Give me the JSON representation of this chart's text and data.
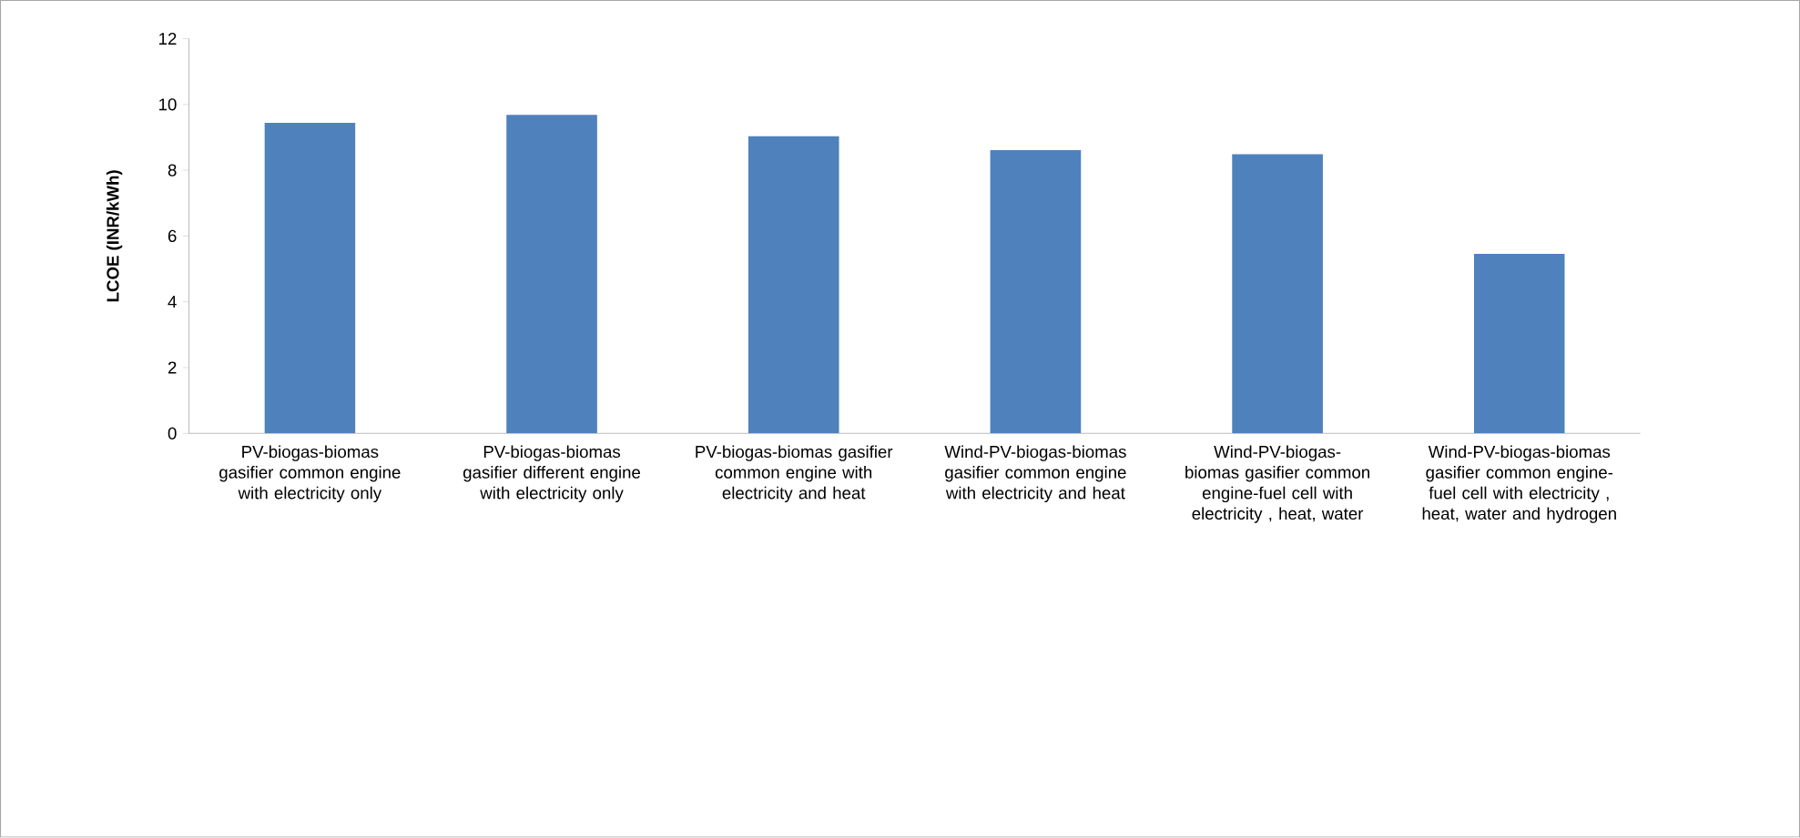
{
  "chart_data": {
    "type": "bar",
    "ylabel": "LCOE (INR/kWh)",
    "categories": [
      "PV-biogas-biomas gasifier common engine with electricity only",
      "PV-biogas-biomas gasifier different engine with electricity only",
      "PV-biogas-biomas gasifier common engine with electricity and heat",
      "Wind-PV-biogas-biomas gasifier common engine with electricity and heat",
      "Wind-PV-biogas-biomas gasifier common engine-fuel cell with electricity , heat, water",
      "Wind-PV-biogas-biomas gasifier common engine-fuel cell with electricity , heat, water and hydrogen"
    ],
    "values": [
      9.44,
      9.68,
      9.03,
      8.61,
      8.49,
      5.46
    ],
    "color": "#4f81bd",
    "ylim": [
      0,
      12
    ],
    "yticks": [
      0,
      2,
      4,
      6,
      8,
      10,
      12
    ],
    "grid": false
  }
}
